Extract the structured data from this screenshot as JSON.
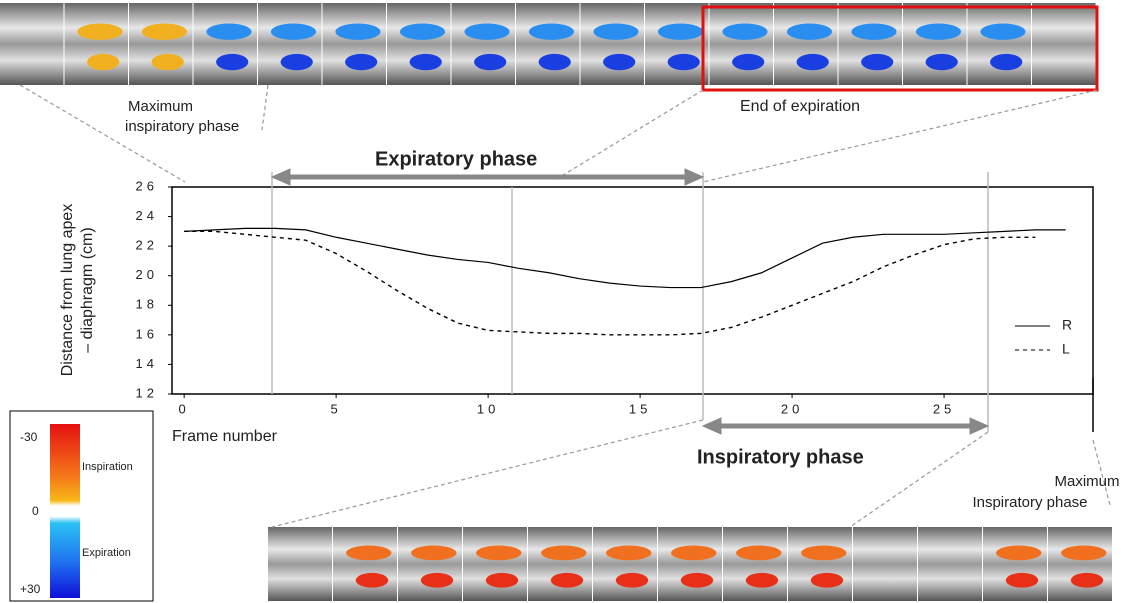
{
  "chart_data": {
    "type": "line",
    "x": [
      0,
      1,
      2,
      3,
      4,
      5,
      6,
      7,
      8,
      9,
      10,
      11,
      12,
      13,
      14,
      15,
      16,
      17,
      18,
      19,
      20,
      21,
      22,
      23,
      24,
      25,
      26,
      27,
      28,
      29
    ],
    "series": [
      {
        "name": "R",
        "color": "#000000",
        "dash": "solid",
        "values": [
          23,
          23.1,
          23.2,
          23.2,
          23.1,
          22.6,
          22.2,
          21.8,
          21.4,
          21.1,
          20.9,
          20.5,
          20.2,
          19.8,
          19.5,
          19.3,
          19.2,
          19.2,
          19.6,
          20.2,
          21.2,
          22.2,
          22.6,
          22.8,
          22.8,
          22.8,
          22.9,
          23.0,
          23.1,
          23.1
        ]
      },
      {
        "name": "L",
        "color": "#000000",
        "dash": "dashed",
        "values": [
          23,
          23,
          22.8,
          22.6,
          22.4,
          21.5,
          20.3,
          19.0,
          17.8,
          16.8,
          16.3,
          16.2,
          16.1,
          16.1,
          16.0,
          16.0,
          16.0,
          16.1,
          16.5,
          17.2,
          18.0,
          18.8,
          19.6,
          20.6,
          21.4,
          22.1,
          22.5,
          22.6,
          22.6,
          null
        ]
      }
    ],
    "xlim": [
      -0.4,
      29.9
    ],
    "ylim": [
      12,
      26
    ],
    "xticks": [
      0,
      5,
      10,
      15,
      20,
      25
    ],
    "yticks": [
      12,
      14,
      16,
      18,
      20,
      22,
      24,
      26
    ],
    "xlabel": "Frame number",
    "ylabel": [
      "Distance from lung apex",
      "– diaphragm (cm)"
    ],
    "annotations": {
      "max_insp_top": [
        "Maximum",
        "inspiratory phase"
      ],
      "end_expiration": "End of expiration",
      "expiratory_phase": "Expiratory phase",
      "inspiratory_phase": "Inspiratory phase",
      "max_insp_bottom": [
        "Maximum",
        "Inspiratory phase"
      ]
    },
    "colorbar": {
      "top": "-30",
      "top_label": "Inspiration",
      "middle": "0",
      "bottom_label": "Expiration",
      "bottom": "+30"
    }
  }
}
